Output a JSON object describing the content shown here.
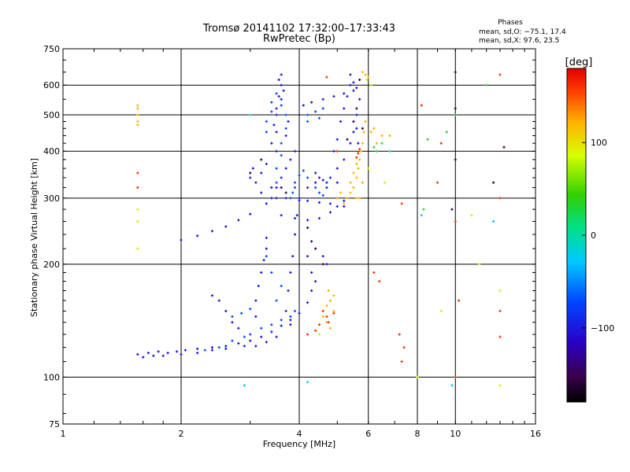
{
  "chart_data": {
    "type": "scatter",
    "title": "Tromsø 20141102 17:32:00–17:33:43",
    "subtitle": "RwPretec (Bp)",
    "xlabel": "Frequency [MHz]",
    "ylabel": "Stationary phase Virtual Height [km]",
    "x_scale": "log",
    "y_scale": "log",
    "xlim": [
      1,
      16
    ],
    "ylim": [
      75,
      750
    ],
    "x_ticks": [
      "1",
      "2",
      "4",
      "6",
      "8",
      "10",
      "16"
    ],
    "y_ticks": [
      "75",
      "100",
      "200",
      "300",
      "400",
      "500",
      "600",
      "750"
    ],
    "grid": true,
    "stats": {
      "heading": "Phases",
      "line_o": "mean, sd,O: −75.1, 17.4",
      "line_x": "mean, sd,X:  97.6, 23.5"
    },
    "colorbar": {
      "label": "[deg]",
      "range": [
        -180,
        180
      ],
      "ticks": [
        "100",
        "0",
        "−100"
      ],
      "tick_values": [
        100,
        0,
        -100
      ]
    },
    "series": [
      {
        "description_color_phase_deg": -100,
        "points": [
          [
            1.55,
            115
          ],
          [
            1.65,
            116
          ],
          [
            1.75,
            117
          ],
          [
            1.85,
            116
          ],
          [
            1.95,
            117
          ],
          [
            2.05,
            118
          ],
          [
            2.2,
            119
          ],
          [
            2.4,
            120
          ],
          [
            2.6,
            121
          ],
          [
            2.8,
            123
          ],
          [
            3.0,
            125
          ],
          [
            3.2,
            128
          ],
          [
            3.4,
            132
          ],
          [
            3.6,
            137
          ],
          [
            3.8,
            142
          ],
          [
            1.6,
            113
          ],
          [
            1.7,
            114
          ],
          [
            1.8,
            114
          ],
          [
            2.0,
            115
          ],
          [
            2.2,
            116
          ],
          [
            2.4,
            118
          ],
          [
            2.6,
            119
          ],
          [
            2.9,
            121
          ],
          [
            3.1,
            121
          ],
          [
            3.3,
            124
          ],
          [
            3.5,
            128
          ],
          [
            3.8,
            138
          ],
          [
            4.0,
            148
          ],
          [
            4.2,
            158
          ],
          [
            3.1,
            145
          ],
          [
            3.1,
            160
          ],
          [
            3.15,
            175
          ],
          [
            3.2,
            190
          ],
          [
            3.25,
            205
          ],
          [
            3.3,
            220
          ],
          [
            3.3,
            235
          ],
          [
            3.7,
            150
          ],
          [
            3.75,
            170
          ],
          [
            3.8,
            190
          ],
          [
            3.85,
            210
          ],
          [
            3.9,
            240
          ],
          [
            3.95,
            270
          ],
          [
            2.6,
            150
          ],
          [
            2.7,
            140
          ],
          [
            2.8,
            135
          ],
          [
            2.5,
            160
          ],
          [
            2.4,
            165
          ],
          [
            2.0,
            232
          ],
          [
            2.2,
            238
          ],
          [
            2.4,
            245
          ],
          [
            2.6,
            252
          ],
          [
            2.8,
            262
          ],
          [
            3.0,
            272
          ],
          [
            3.3,
            290
          ],
          [
            3.5,
            300
          ],
          [
            3.7,
            300
          ],
          [
            4.0,
            296
          ],
          [
            4.2,
            295
          ],
          [
            4.5,
            292
          ],
          [
            4.8,
            290
          ],
          [
            5.2,
            285
          ],
          [
            3.4,
            300
          ],
          [
            3.5,
            320
          ],
          [
            3.6,
            340
          ],
          [
            3.7,
            360
          ],
          [
            3.8,
            380
          ],
          [
            3.9,
            400
          ],
          [
            3.6,
            270
          ],
          [
            3.9,
            265
          ],
          [
            4.2,
            262
          ],
          [
            4.5,
            265
          ],
          [
            4.8,
            275
          ],
          [
            5.0,
            285
          ],
          [
            4.0,
            300
          ],
          [
            4.2,
            320
          ],
          [
            4.4,
            330
          ],
          [
            4.7,
            320
          ],
          [
            5.0,
            300
          ],
          [
            5.2,
            295
          ],
          [
            4.8,
            340
          ],
          [
            5.0,
            360
          ],
          [
            5.2,
            380
          ],
          [
            5.4,
            420
          ],
          [
            5.5,
            450
          ],
          [
            5.6,
            500
          ],
          [
            5.7,
            550
          ],
          [
            4.9,
            400
          ],
          [
            5.0,
            430
          ],
          [
            5.1,
            480
          ],
          [
            5.2,
            520
          ],
          [
            5.3,
            560
          ],
          [
            5.4,
            600
          ],
          [
            3.1,
            330
          ],
          [
            3.2,
            350
          ],
          [
            3.3,
            370
          ],
          [
            3.4,
            320
          ],
          [
            3.2,
            310
          ],
          [
            3.0,
            340
          ],
          [
            3.05,
            360
          ],
          [
            3.5,
            400
          ],
          [
            3.5,
            450
          ],
          [
            3.5,
            500
          ],
          [
            3.6,
            550
          ],
          [
            3.6,
            600
          ],
          [
            3.6,
            640
          ],
          [
            3.55,
            620
          ],
          [
            3.65,
            580
          ],
          [
            3.4,
            420
          ],
          [
            3.45,
            470
          ],
          [
            3.5,
            520
          ],
          [
            3.55,
            560
          ],
          [
            3.7,
            440
          ],
          [
            3.75,
            480
          ],
          [
            4.1,
            530
          ],
          [
            4.3,
            540
          ],
          [
            4.6,
            550
          ],
          [
            4.9,
            560
          ],
          [
            5.2,
            570
          ],
          [
            5.5,
            580
          ],
          [
            5.4,
            640
          ],
          [
            5.5,
            610
          ],
          [
            5.6,
            590
          ],
          [
            5.6,
            460
          ],
          [
            5.65,
            420
          ],
          [
            4.4,
            350
          ],
          [
            4.5,
            340
          ],
          [
            4.6,
            335
          ],
          [
            4.7,
            330
          ],
          [
            5.0,
            330
          ],
          [
            4.2,
            210
          ],
          [
            4.3,
            190
          ],
          [
            4.4,
            180
          ],
          [
            4.3,
            170
          ],
          [
            4.6,
            210
          ],
          [
            4.7,
            200
          ]
        ]
      },
      {
        "description_color_phase_deg": -70,
        "points": [
          [
            2.3,
            118
          ],
          [
            2.5,
            120
          ],
          [
            2.7,
            125
          ],
          [
            2.9,
            128
          ],
          [
            3.0,
            130
          ],
          [
            3.2,
            135
          ],
          [
            3.4,
            138
          ],
          [
            3.6,
            142
          ],
          [
            3.8,
            145
          ],
          [
            3.9,
            150
          ],
          [
            3.5,
            160
          ],
          [
            3.6,
            175
          ],
          [
            3.4,
            190
          ],
          [
            3.3,
            210
          ],
          [
            3.5,
            330
          ],
          [
            3.5,
            360
          ],
          [
            3.6,
            390
          ],
          [
            3.6,
            420
          ],
          [
            3.7,
            460
          ],
          [
            3.7,
            500
          ],
          [
            3.6,
            530
          ],
          [
            3.3,
            450
          ],
          [
            3.3,
            480
          ],
          [
            3.4,
            510
          ],
          [
            3.4,
            540
          ],
          [
            3.5,
            570
          ],
          [
            4.2,
            500
          ],
          [
            4.4,
            510
          ],
          [
            4.6,
            520
          ],
          [
            4.2,
            480
          ],
          [
            4.5,
            490
          ],
          [
            3.9,
            330
          ],
          [
            4.0,
            345
          ],
          [
            4.1,
            355
          ],
          [
            4.2,
            340
          ],
          [
            4.4,
            320
          ],
          [
            2.7,
            145
          ],
          [
            2.85,
            148
          ],
          [
            3.0,
            152
          ],
          [
            3.8,
            300
          ],
          [
            3.85,
            310
          ],
          [
            3.9,
            320
          ],
          [
            4.5,
            310
          ],
          [
            4.6,
            305
          ]
        ]
      },
      {
        "description_color_phase_deg": -150,
        "points": [
          [
            3.6,
            320
          ],
          [
            3.7,
            310
          ],
          [
            3.2,
            380
          ],
          [
            3.0,
            350
          ],
          [
            5.3,
            430
          ],
          [
            5.5,
            480
          ],
          [
            5.6,
            520
          ],
          [
            4.3,
            230
          ],
          [
            4.4,
            220
          ],
          [
            4.2,
            250
          ],
          [
            5.7,
            620
          ],
          [
            5.8,
            460
          ],
          [
            4.6,
            200
          ],
          [
            10.0,
            650
          ],
          [
            10.0,
            520
          ],
          [
            10.0,
            500
          ],
          [
            9.8,
            280
          ],
          [
            12.5,
            330
          ],
          [
            10.0,
            380
          ],
          [
            13.3,
            410
          ]
        ]
      },
      {
        "description_color_phase_deg": 120,
        "points": [
          [
            5.2,
            290
          ],
          [
            5.3,
            300
          ],
          [
            5.4,
            310
          ],
          [
            5.5,
            320
          ],
          [
            5.6,
            340
          ],
          [
            5.65,
            360
          ],
          [
            5.7,
            380
          ],
          [
            5.75,
            400
          ],
          [
            5.4,
            330
          ],
          [
            5.5,
            350
          ],
          [
            5.6,
            370
          ],
          [
            5.8,
            420
          ],
          [
            5.85,
            450
          ],
          [
            5.9,
            480
          ],
          [
            5.6,
            300
          ],
          [
            5.0,
            300
          ],
          [
            5.1,
            310
          ],
          [
            5.7,
            300
          ],
          [
            5.8,
            330
          ],
          [
            4.7,
            155
          ],
          [
            4.8,
            160
          ],
          [
            4.9,
            150
          ],
          [
            4.6,
            145
          ],
          [
            4.7,
            140
          ],
          [
            4.8,
            135
          ],
          [
            4.9,
            165
          ],
          [
            4.75,
            170
          ],
          [
            1.55,
            500
          ],
          [
            1.55,
            480
          ],
          [
            1.55,
            470
          ],
          [
            1.55,
            530
          ],
          [
            1.55,
            520
          ],
          [
            6.3,
            420
          ],
          [
            6.5,
            440
          ],
          [
            6.2,
            460
          ],
          [
            6.8,
            440
          ],
          [
            6.1,
            450
          ],
          [
            5.9,
            640
          ],
          [
            5.8,
            650
          ],
          [
            6.0,
            630
          ]
        ]
      },
      {
        "description_color_phase_deg": 160,
        "points": [
          [
            4.6,
            150
          ],
          [
            4.7,
            145
          ],
          [
            4.75,
            140
          ],
          [
            4.5,
            138
          ],
          [
            4.4,
            133
          ],
          [
            4.2,
            130
          ],
          [
            4.9,
            148
          ],
          [
            5.6,
            385
          ],
          [
            5.7,
            405
          ],
          [
            5.65,
            395
          ],
          [
            1.55,
            350
          ],
          [
            1.55,
            320
          ],
          [
            6.2,
            190
          ],
          [
            6.4,
            180
          ],
          [
            7.3,
            290
          ],
          [
            8.2,
            530
          ],
          [
            9.0,
            330
          ],
          [
            9.2,
            420
          ],
          [
            10.0,
            260
          ],
          [
            10.2,
            160
          ],
          [
            10.0,
            100
          ],
          [
            13.0,
            640
          ],
          [
            13.0,
            300
          ],
          [
            13.0,
            150
          ],
          [
            13.0,
            128
          ],
          [
            7.2,
            130
          ],
          [
            7.4,
            120
          ],
          [
            7.3,
            110
          ],
          [
            4.7,
            630
          ],
          [
            5.0,
            400
          ]
        ]
      },
      {
        "description_color_phase_deg": 30,
        "points": [
          [
            6.3,
            400
          ],
          [
            6.2,
            410
          ],
          [
            6.5,
            420
          ],
          [
            8.5,
            430
          ],
          [
            8.3,
            280
          ],
          [
            9.5,
            450
          ],
          [
            12.0,
            600
          ],
          [
            10.0,
            500
          ]
        ]
      },
      {
        "description_color_phase_deg": 80,
        "points": [
          [
            1.55,
            280
          ],
          [
            1.55,
            260
          ],
          [
            1.55,
            220
          ],
          [
            6.0,
            360
          ],
          [
            6.6,
            330
          ],
          [
            6.1,
            600
          ],
          [
            5.95,
            620
          ],
          [
            9.2,
            150
          ],
          [
            8.0,
            100
          ],
          [
            13.0,
            170
          ],
          [
            13.0,
            95
          ],
          [
            11.5,
            200
          ],
          [
            11.0,
            270
          ],
          [
            4.5,
            130
          ]
        ]
      },
      {
        "description_color_phase_deg": -20,
        "points": [
          [
            12.5,
            260
          ],
          [
            6.8,
            400
          ],
          [
            8.2,
            270
          ],
          [
            3.0,
            500
          ],
          [
            2.9,
            95
          ],
          [
            4.2,
            97
          ],
          [
            9.8,
            95
          ]
        ]
      }
    ]
  }
}
